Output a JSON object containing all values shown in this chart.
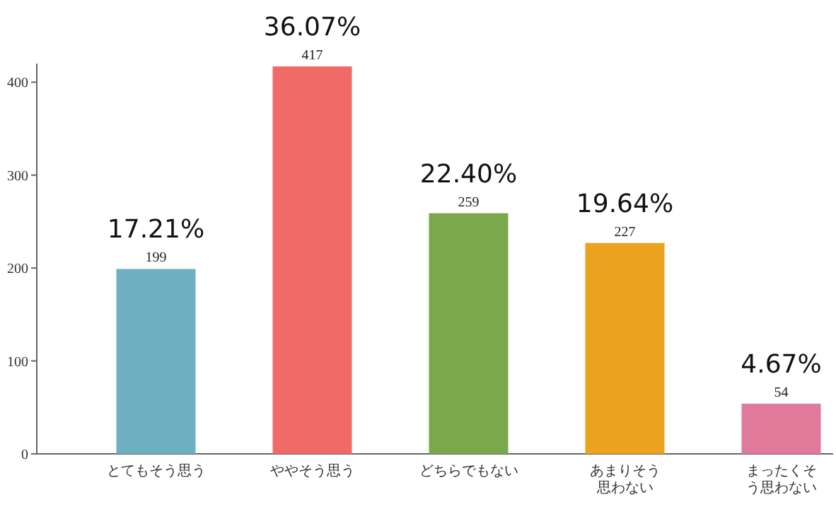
{
  "chart_data": {
    "type": "bar",
    "categories": [
      "とてもそう思う",
      "ややそう思う",
      "どちらでもない",
      "あまりそう思わない",
      "まったくそう思わない"
    ],
    "values": [
      199,
      417,
      259,
      227,
      54
    ],
    "colors": [
      "#6fb0c0",
      "#f06a67",
      "#7aa84a",
      "#eba21f",
      "#e07a9a"
    ],
    "ylim": [
      0,
      420
    ],
    "yticks": [
      0,
      100,
      200,
      300,
      400
    ],
    "data_labels": true,
    "annotations": [
      {
        "text": "17.21%",
        "x": "とてもそう思う",
        "y": 199
      },
      {
        "text": "36.07%",
        "x": "ややそう思う",
        "y": 417
      },
      {
        "text": "22.40%",
        "x": "どちらでもない",
        "y": 259
      },
      {
        "text": "19.64%",
        "x": "あまりそう思わない",
        "y": 227
      },
      {
        "text": "4.67%",
        "x": "まったくそう思わない",
        "y": 54
      }
    ]
  }
}
